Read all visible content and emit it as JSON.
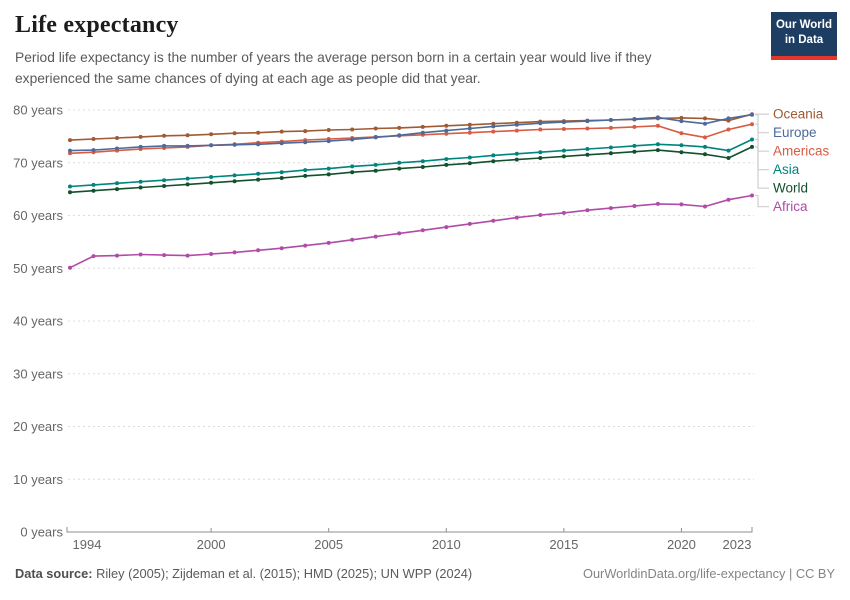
{
  "header": {
    "title": "Life expectancy",
    "subtitle": "Period life expectancy is the number of years the average person born in a certain year would live if they experienced the same chances of dying at each age as people did that year.",
    "logo_line1": "Our World",
    "logo_line2": "in Data"
  },
  "footer": {
    "source_label": "Data source:",
    "source_text": " Riley (2005); Zijdeman et al. (2015); HMD (2025); UN WPP (2024)",
    "link_text": "OurWorldinData.org/life-expectancy | CC BY"
  },
  "colors": {
    "grid": "#dcdcdc",
    "axis": "#8f8f8f",
    "tick_text": "#666666",
    "connector": "#cfcfcf",
    "logo_bg": "#1D3D63",
    "logo_red": "#E0362C"
  },
  "chart_data": {
    "type": "line",
    "title": "Life expectancy",
    "xlabel": "",
    "ylabel": "years",
    "ylim": [
      0,
      80
    ],
    "grid": true,
    "legend_position": "right",
    "x": [
      1994,
      1995,
      1996,
      1997,
      1998,
      1999,
      2000,
      2001,
      2002,
      2003,
      2004,
      2005,
      2006,
      2007,
      2008,
      2009,
      2010,
      2011,
      2012,
      2013,
      2014,
      2015,
      2016,
      2017,
      2018,
      2019,
      2020,
      2021,
      2022,
      2023
    ],
    "xticks": [
      {
        "year": 1994,
        "label": "1994"
      },
      {
        "year": 2000,
        "label": "2000"
      },
      {
        "year": 2005,
        "label": "2005"
      },
      {
        "year": 2010,
        "label": "2010"
      },
      {
        "year": 2015,
        "label": "2015"
      },
      {
        "year": 2020,
        "label": "2020"
      },
      {
        "year": 2023,
        "label": "2023"
      }
    ],
    "yticks": [
      {
        "v": 80,
        "label": "80 years"
      },
      {
        "v": 70,
        "label": "70 years"
      },
      {
        "v": 60,
        "label": "60 years"
      },
      {
        "v": 50,
        "label": "50 years"
      },
      {
        "v": 40,
        "label": "40 years"
      },
      {
        "v": 30,
        "label": "30 years"
      },
      {
        "v": 20,
        "label": "20 years"
      },
      {
        "v": 10,
        "label": "10 years"
      },
      {
        "v": 0,
        "label": "0 years"
      }
    ],
    "series": [
      {
        "name": "Oceania",
        "color": "#9F5B34",
        "values": [
          74.3,
          74.5,
          74.7,
          74.9,
          75.1,
          75.2,
          75.4,
          75.6,
          75.7,
          75.9,
          76.0,
          76.2,
          76.3,
          76.5,
          76.6,
          76.8,
          77.0,
          77.2,
          77.4,
          77.6,
          77.8,
          77.9,
          78.0,
          78.1,
          78.2,
          78.4,
          78.5,
          78.4,
          78.0,
          79.2
        ]
      },
      {
        "name": "Europe",
        "color": "#4C6A9C",
        "values": [
          72.3,
          72.4,
          72.7,
          73.0,
          73.2,
          73.2,
          73.3,
          73.4,
          73.5,
          73.7,
          73.9,
          74.1,
          74.4,
          74.8,
          75.2,
          75.7,
          76.1,
          76.5,
          76.9,
          77.2,
          77.5,
          77.7,
          77.9,
          78.1,
          78.3,
          78.6,
          77.9,
          77.4,
          78.4,
          79.1
        ]
      },
      {
        "name": "Americas",
        "color": "#D75C43",
        "values": [
          71.8,
          72.0,
          72.3,
          72.6,
          72.8,
          73.0,
          73.3,
          73.5,
          73.8,
          74.0,
          74.3,
          74.5,
          74.7,
          74.9,
          75.1,
          75.3,
          75.5,
          75.7,
          75.9,
          76.1,
          76.3,
          76.4,
          76.5,
          76.6,
          76.8,
          77.0,
          75.6,
          74.8,
          76.3,
          77.3
        ]
      },
      {
        "name": "Asia",
        "color": "#00847E",
        "values": [
          65.5,
          65.8,
          66.1,
          66.4,
          66.7,
          67.0,
          67.3,
          67.6,
          67.9,
          68.2,
          68.6,
          68.9,
          69.3,
          69.6,
          70.0,
          70.3,
          70.7,
          71.0,
          71.4,
          71.7,
          72.0,
          72.3,
          72.6,
          72.9,
          73.2,
          73.5,
          73.3,
          73.0,
          72.3,
          74.4
        ]
      },
      {
        "name": "World",
        "color": "#14502D",
        "values": [
          64.4,
          64.7,
          65.0,
          65.3,
          65.6,
          65.9,
          66.2,
          66.5,
          66.8,
          67.1,
          67.5,
          67.8,
          68.2,
          68.5,
          68.9,
          69.2,
          69.6,
          69.9,
          70.3,
          70.6,
          70.9,
          71.2,
          71.5,
          71.8,
          72.1,
          72.4,
          72.0,
          71.6,
          70.9,
          73.0
        ]
      },
      {
        "name": "Africa",
        "color": "#B14BA6",
        "values": [
          50.1,
          52.3,
          52.4,
          52.6,
          52.5,
          52.4,
          52.7,
          53.0,
          53.4,
          53.8,
          54.3,
          54.8,
          55.4,
          56.0,
          56.6,
          57.2,
          57.8,
          58.4,
          59.0,
          59.6,
          60.1,
          60.5,
          61.0,
          61.4,
          61.8,
          62.2,
          62.1,
          61.7,
          63.0,
          63.8
        ]
      }
    ]
  }
}
